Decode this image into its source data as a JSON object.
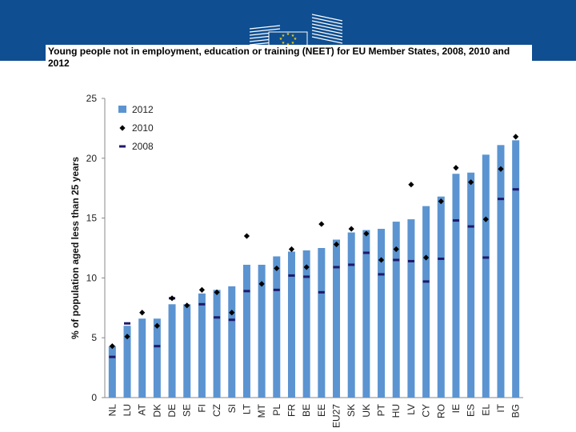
{
  "header": {
    "title": "Young people not in employment, education or training (NEET) for EU Member States, 2008, 2010 and 2012"
  },
  "colors": {
    "banner": "#0e4e91",
    "bar_2012": "#5b94d1",
    "marker_2010": "#000000",
    "marker_2008": "#1f1a6b"
  },
  "chart_data": {
    "type": "bar",
    "title": "",
    "xlabel": "",
    "ylabel": "% of population aged less than 25 years",
    "ylim": [
      0,
      25
    ],
    "yticks": [
      0,
      5,
      10,
      15,
      20,
      25
    ],
    "grid": false,
    "legend_position": "top-left",
    "categories": [
      "NL",
      "LU",
      "AT",
      "DK",
      "DE",
      "SE",
      "FI",
      "CZ",
      "SI",
      "LT",
      "MT",
      "PL",
      "FR",
      "BE",
      "EE",
      "EU27",
      "SK",
      "UK",
      "PT",
      "HU",
      "LV",
      "CY",
      "RO",
      "IE",
      "ES",
      "EL",
      "IT",
      "BG"
    ],
    "series": [
      {
        "name": "2012",
        "kind": "bar",
        "values": [
          4.3,
          6.0,
          6.6,
          6.6,
          7.8,
          7.8,
          8.7,
          9.0,
          9.3,
          11.1,
          11.1,
          11.8,
          12.2,
          12.3,
          12.5,
          13.2,
          13.8,
          14.0,
          14.1,
          14.7,
          14.9,
          16.0,
          16.8,
          18.7,
          18.8,
          20.3,
          21.1,
          21.5
        ]
      },
      {
        "name": "2010",
        "kind": "diamond",
        "values": [
          4.3,
          5.1,
          7.1,
          6.0,
          8.3,
          7.7,
          9.0,
          8.8,
          7.1,
          13.5,
          9.5,
          10.8,
          12.4,
          10.9,
          14.5,
          12.8,
          14.1,
          13.7,
          11.5,
          12.4,
          17.8,
          11.7,
          16.4,
          19.2,
          18.0,
          14.9,
          19.1,
          21.8
        ]
      },
      {
        "name": "2008",
        "kind": "dash",
        "values": [
          3.4,
          6.2,
          null,
          4.3,
          8.3,
          null,
          7.8,
          6.7,
          6.5,
          8.9,
          null,
          9.0,
          10.2,
          10.1,
          8.8,
          10.9,
          11.1,
          12.1,
          10.3,
          11.5,
          11.4,
          9.7,
          11.6,
          14.8,
          14.3,
          11.7,
          16.6,
          17.4
        ]
      }
    ]
  }
}
